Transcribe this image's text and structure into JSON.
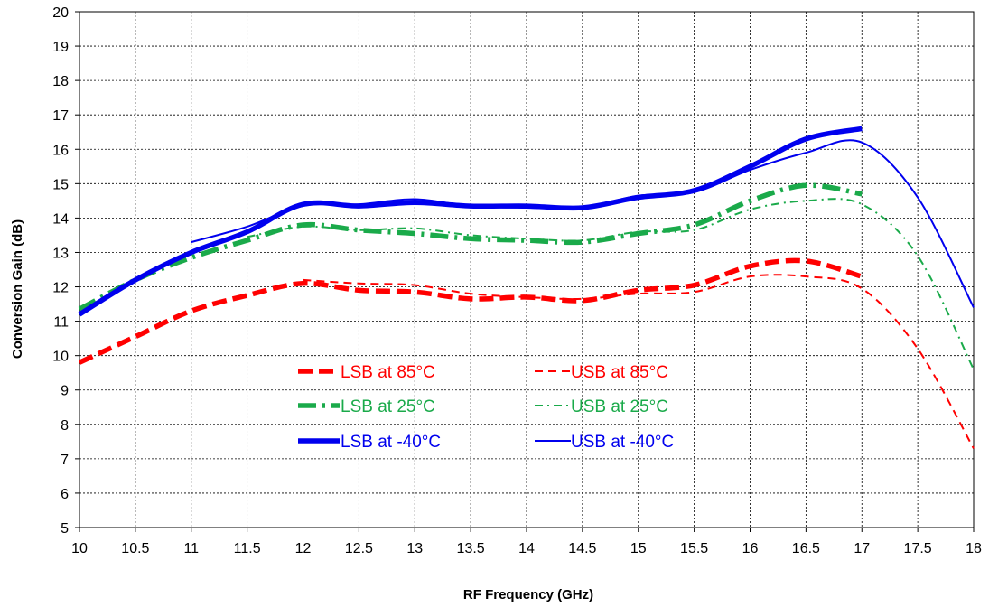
{
  "chart_data": {
    "type": "line",
    "title": "",
    "xlabel": "RF Frequency (GHz)",
    "ylabel": "Conversion Gain (dB)",
    "xlim": [
      10,
      18
    ],
    "ylim": [
      5,
      20
    ],
    "x_ticks": [
      "10",
      "10.5",
      "11",
      "11.5",
      "12",
      "12.5",
      "13",
      "13.5",
      "14",
      "14.5",
      "15",
      "15.5",
      "16",
      "16.5",
      "17",
      "17.5",
      "18"
    ],
    "y_ticks": [
      "5",
      "6",
      "7",
      "8",
      "9",
      "10",
      "11",
      "12",
      "13",
      "14",
      "15",
      "16",
      "17",
      "18",
      "19",
      "20"
    ],
    "grid": true,
    "legend_position": "center-left, inside plot",
    "series": [
      {
        "name": "LSB at 85°C",
        "color": "#ff0000",
        "style": "thick-dashed",
        "x": [
          10,
          10.5,
          11,
          11.5,
          12,
          12.5,
          13,
          13.5,
          14,
          14.5,
          15,
          15.5,
          16,
          16.5,
          17
        ],
        "values": [
          9.8,
          10.55,
          11.3,
          11.75,
          12.1,
          11.9,
          11.85,
          11.65,
          11.7,
          11.6,
          11.9,
          12.05,
          12.6,
          12.75,
          12.3
        ]
      },
      {
        "name": "USB at 85°C",
        "color": "#ff0000",
        "style": "dashed",
        "x": [
          12,
          12.5,
          13,
          13.5,
          14,
          14.5,
          15,
          15.5,
          16,
          16.5,
          17,
          17.5,
          18
        ],
        "values": [
          12.2,
          12.1,
          12.05,
          11.8,
          11.7,
          11.65,
          11.8,
          11.85,
          12.3,
          12.3,
          11.95,
          10.2,
          7.3
        ]
      },
      {
        "name": "LSB at 25°C",
        "color": "#1aaa4a",
        "style": "thick-dash-dot",
        "x": [
          10,
          10.5,
          11,
          11.5,
          12,
          12.5,
          13,
          13.5,
          14,
          14.5,
          15,
          15.5,
          16,
          16.5,
          17
        ],
        "values": [
          11.35,
          12.2,
          12.85,
          13.35,
          13.8,
          13.65,
          13.55,
          13.4,
          13.35,
          13.3,
          13.55,
          13.8,
          14.5,
          14.95,
          14.7
        ]
      },
      {
        "name": "USB at 25°C",
        "color": "#1aaa4a",
        "style": "dash-dot",
        "x": [
          11.5,
          12,
          12.5,
          13,
          13.5,
          14,
          14.5,
          15,
          15.5,
          16,
          16.5,
          17,
          17.5,
          18
        ],
        "values": [
          13.45,
          13.75,
          13.65,
          13.7,
          13.5,
          13.4,
          13.35,
          13.6,
          13.65,
          14.25,
          14.5,
          14.4,
          12.9,
          9.6
        ]
      },
      {
        "name": "LSB at -40°C",
        "color": "#0000ee",
        "style": "thick-solid",
        "x": [
          10,
          10.5,
          11,
          11.5,
          12,
          12.5,
          13,
          13.5,
          14,
          14.5,
          15,
          15.5,
          16,
          16.5,
          17
        ],
        "values": [
          11.2,
          12.2,
          13.0,
          13.6,
          14.4,
          14.35,
          14.45,
          14.35,
          14.35,
          14.3,
          14.6,
          14.8,
          15.5,
          16.3,
          16.6
        ]
      },
      {
        "name": "USB at -40°C",
        "color": "#0000ee",
        "style": "solid",
        "x": [
          11,
          11.5,
          12,
          12.5,
          13,
          13.5,
          14,
          14.5,
          15,
          15.5,
          16,
          16.5,
          17,
          17.5,
          18
        ],
        "values": [
          13.3,
          13.75,
          14.35,
          14.4,
          14.55,
          14.35,
          14.3,
          14.3,
          14.65,
          14.75,
          15.4,
          15.9,
          16.2,
          14.6,
          11.4
        ]
      }
    ]
  }
}
